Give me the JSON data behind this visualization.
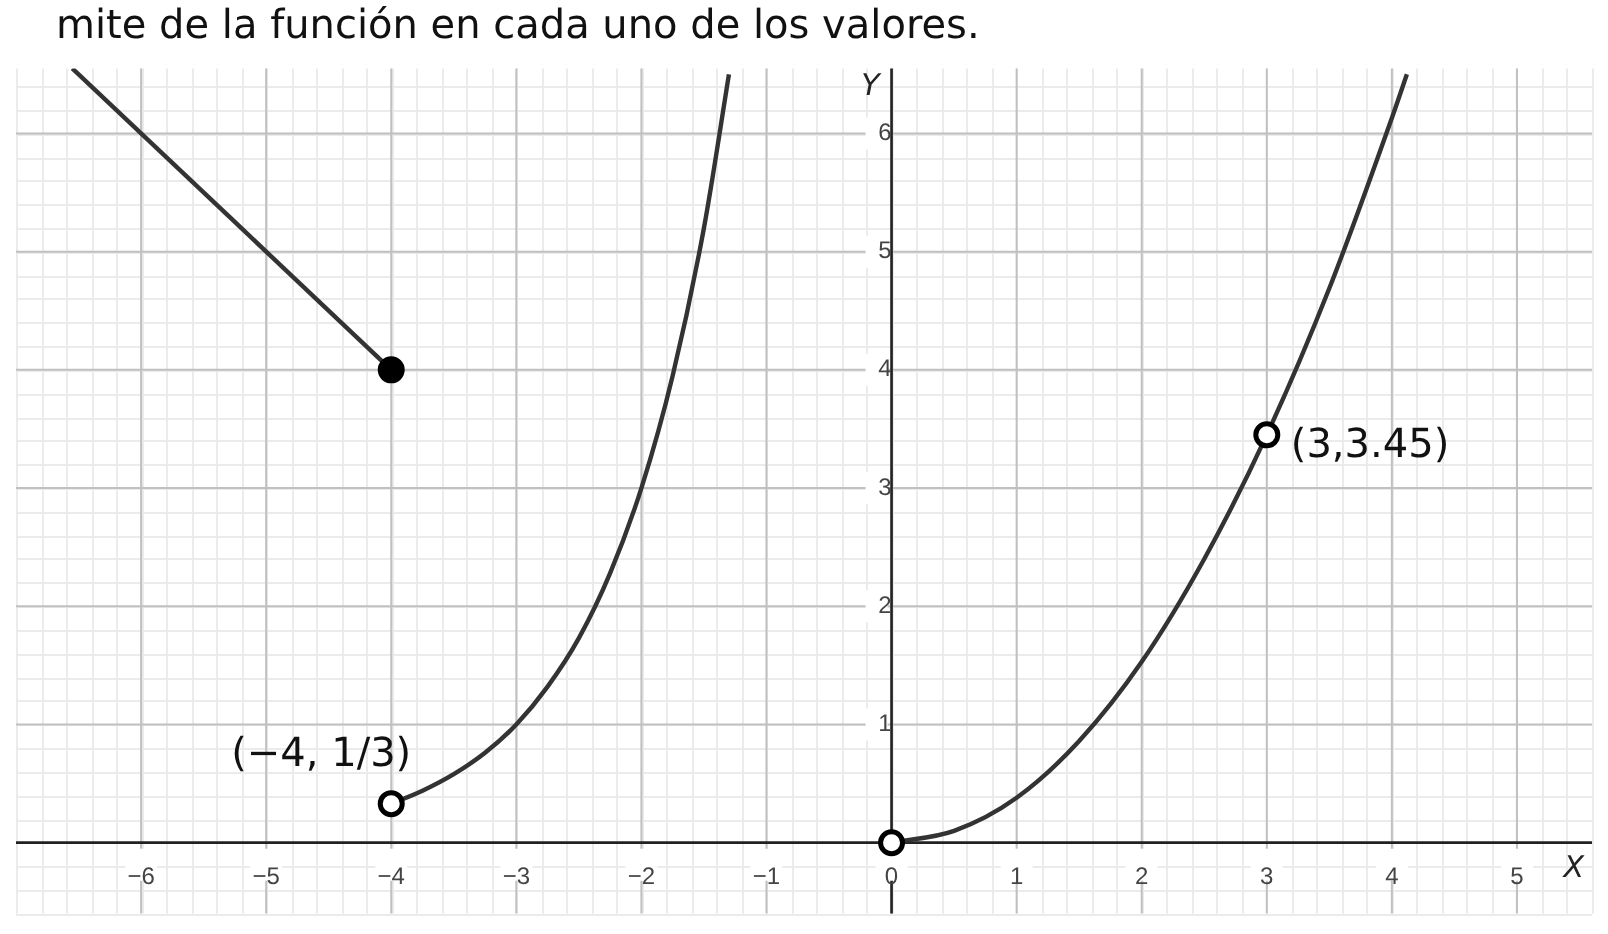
{
  "chart_data": {
    "type": "line",
    "title": "mite de la función en cada uno de los valores.",
    "xlabel": "X",
    "ylabel": "Y",
    "xlim": [
      -7,
      5.6
    ],
    "ylim": [
      -0.6,
      6.55
    ],
    "xticks": [
      -6,
      -5,
      -4,
      -3,
      -2,
      -1,
      0,
      1,
      2,
      3,
      4,
      5
    ],
    "yticks": [
      1,
      2,
      3,
      4,
      5,
      6
    ],
    "grid": true,
    "legend": false,
    "marker": "none",
    "line_style": "solid",
    "series": [
      {
        "type": "line",
        "color": "#333333",
        "x": [
          -6.55,
          -4
        ],
        "values": [
          6.55,
          4
        ]
      },
      {
        "type": "line",
        "color": "#333333",
        "x": [
          -4,
          -3.75,
          -3.5,
          -3.25,
          -3,
          -2.75,
          -2.5,
          -2.25,
          -2,
          -1.75,
          -1.5,
          -1.3
        ],
        "values": [
          0.33,
          0.44,
          0.58,
          0.76,
          1,
          1.32,
          1.73,
          2.28,
          3,
          3.95,
          5.2,
          6.5
        ]
      },
      {
        "type": "line",
        "color": "#333333",
        "x": [
          0,
          0.5,
          1,
          1.5,
          2,
          2.5,
          3,
          3.5,
          4,
          4.12
        ],
        "values": [
          0,
          0.1,
          0.38,
          0.86,
          1.53,
          2.4,
          3.45,
          4.69,
          6.13,
          6.5
        ]
      },
      {
        "type": "scatter",
        "marker": "circle",
        "color": "#000000",
        "x": [
          -4
        ],
        "values": [
          4
        ]
      },
      {
        "type": "scatter",
        "marker": "circle",
        "color": "#ffffff",
        "x": [
          -4,
          0,
          3
        ],
        "values": [
          0.33,
          0,
          3.45
        ]
      }
    ],
    "annotations": [
      {
        "text": "(−4, 1/3)",
        "x": -4,
        "y": 0.33
      },
      {
        "text": "(3,3.45)",
        "x": 3,
        "y": 3.45
      }
    ]
  }
}
